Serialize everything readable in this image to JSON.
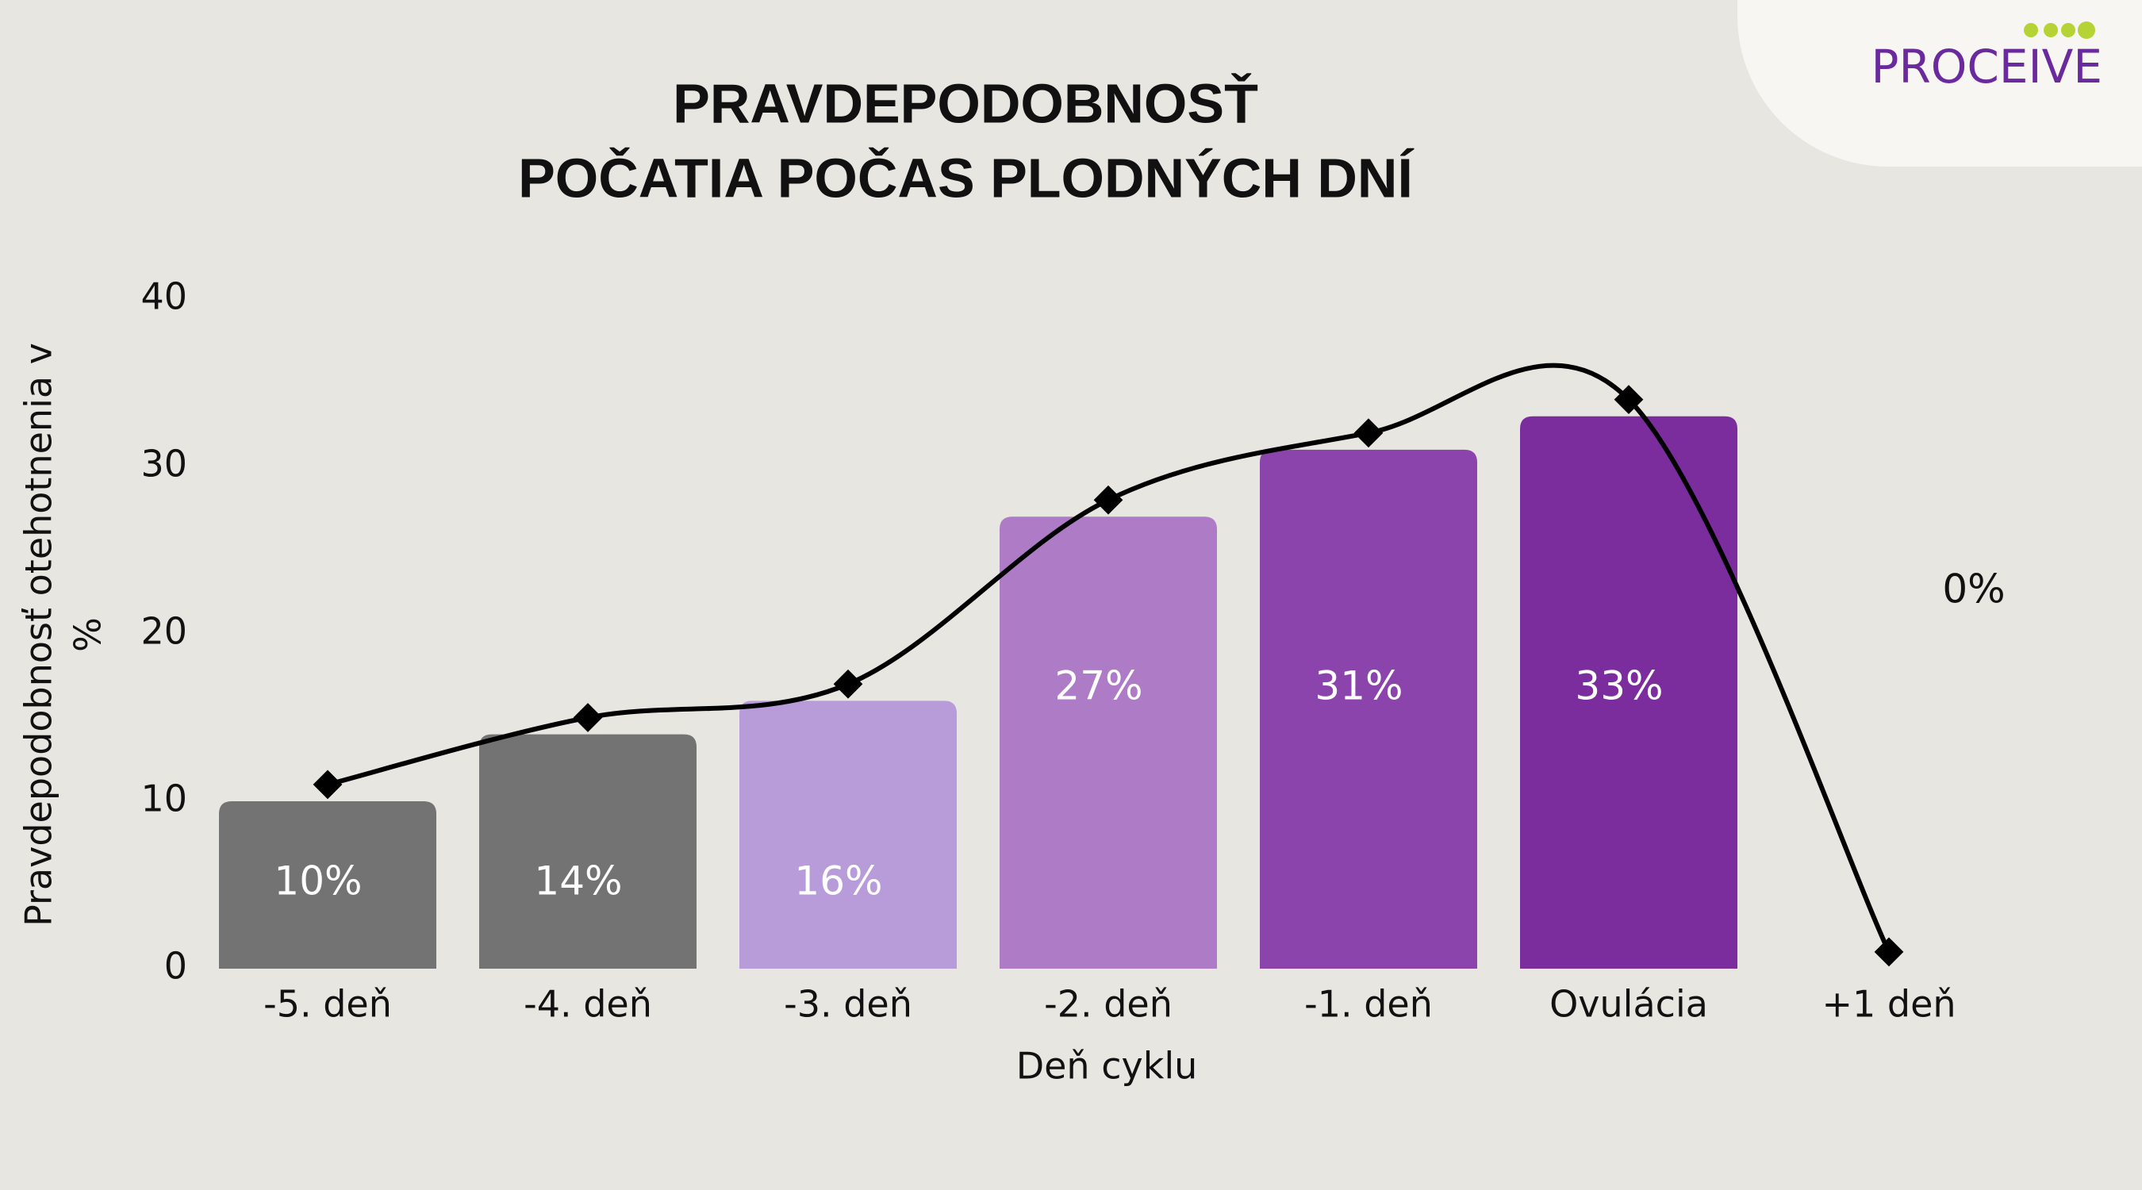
{
  "chart_data": {
    "type": "bar_line",
    "title": [
      "PRAVDEPODOBNOSŤ",
      "POČATIA POČAS PLODNÝCH DNÍ"
    ],
    "brand": "PROCEIVE",
    "xlabel": "Deň cyklu",
    "ylabel": [
      "Pravdepodobnosť otehotnenia v",
      "%"
    ],
    "categories": [
      "-5. deň",
      "-4. deň",
      "-3. deň",
      "-2. deň",
      "-1. deň",
      "Ovulácia",
      "+1 deň"
    ],
    "series": [
      {
        "type": "bar",
        "values": [
          10,
          14,
          16,
          27,
          31,
          33,
          0
        ],
        "value_labels": [
          "10%",
          "14%",
          "16%",
          "27%",
          "31%",
          "33%",
          "0%"
        ],
        "colors": [
          "#737373",
          "#737373",
          "#b89cd9",
          "#ae7bc6",
          "#8c44ad",
          "#7b2d9e",
          "#ffffff"
        ]
      },
      {
        "type": "line",
        "values": [
          11,
          15,
          17,
          28,
          32,
          34,
          1
        ],
        "color": "#000000"
      }
    ],
    "ylim": [
      0,
      40
    ],
    "yticks": [
      0,
      10,
      20,
      30,
      40
    ],
    "grid": false
  }
}
